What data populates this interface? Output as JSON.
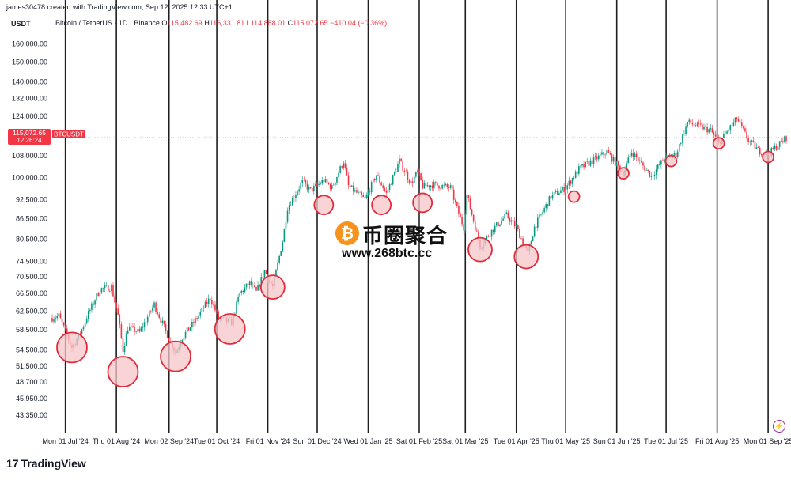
{
  "header": {
    "attribution": "james30478 created with TradingView.com, Sep 12, 2025 12:33 UTC+1",
    "unit": "USDT",
    "symbol_label": "Bitcoin / TetherUS · 1D · Binance",
    "open_label": "O",
    "open_value": "115,482.69",
    "high_label": "H",
    "high_value": "116,331.81",
    "low_label": "L",
    "low_value": "114,888.01",
    "close_label": "C",
    "close_value": "115,072.65",
    "change": "−410.04 (−0.36%)"
  },
  "price_badge": {
    "price": "115,072.65",
    "countdown": "12:26:24",
    "ticker": "BTCUSDT"
  },
  "watermark": {
    "coin_glyph": "₿",
    "name": "币圈聚合",
    "url": "www.268btc.cc"
  },
  "footer": {
    "brand": "TradingView",
    "logo_text": "17"
  },
  "colors": {
    "up": "#089981",
    "down": "#f23645",
    "circle_fill": "#f7c6c9",
    "circle_stroke": "#e02d3c",
    "vline": "#1e1e1e"
  },
  "icons": {
    "brand_logo": "tradingview-logo-icon",
    "coin": "bitcoin-icon",
    "bolt": "lightning-icon"
  },
  "chart_data": {
    "type": "candlestick",
    "y_axis": {
      "scale": "log",
      "ylim": [
        41000,
        168000
      ],
      "ticks": [
        43350,
        45950,
        48700,
        51500,
        54500,
        58500,
        62500,
        66500,
        70500,
        74500,
        80500,
        86500,
        92500,
        100000,
        108000,
        124000,
        132000,
        140000,
        150000,
        160000
      ],
      "tick_labels": [
        "43,350.00",
        "45,950.00",
        "48,700.00",
        "51,500.00",
        "54,500.00",
        "58,500.00",
        "62,500.00",
        "66,500.00",
        "70,500.00",
        "74,500.00",
        "80,500.00",
        "86,500.00",
        "92,500.00",
        "100,000.00",
        "108,000.00",
        "124,000.00",
        "132,000.00",
        "140,000.00",
        "150,000.00",
        "160,000.00"
      ]
    },
    "x_axis": {
      "start": "2024-06-23",
      "end": "2025-09-12",
      "month_starts": [
        "2024-07-01",
        "2024-08-01",
        "2024-09-02",
        "2024-10-01",
        "2024-11-01",
        "2024-12-01",
        "2025-01-01",
        "2025-02-01",
        "2025-03-01",
        "2025-04-01",
        "2025-05-01",
        "2025-06-01",
        "2025-07-01",
        "2025-08-01",
        "2025-09-01"
      ],
      "month_labels": [
        "Mon 01 Jul '24",
        "Thu 01 Aug '24",
        "Mon 02 Sep '24",
        "Tue 01 Oct '24",
        "Fri 01 Nov '24",
        "Sun 01 Dec '24",
        "Wed 01 Jan '25",
        "Sat 01 Feb '25",
        "Sat 01 Mar '25",
        "Tue 01 Apr '25",
        "Thu 01 May '25",
        "Sun 01 Jun '25",
        "Tue 01 Jul '25",
        "Fri 01 Aug '25",
        "Mon 01 Sep '25"
      ]
    },
    "last_price": 115072.65,
    "path_points": [
      [
        "2024-06-23",
        61000
      ],
      [
        "2024-06-27",
        61500
      ],
      [
        "2024-07-05",
        55000
      ],
      [
        "2024-07-10",
        57800
      ],
      [
        "2024-07-15",
        62000
      ],
      [
        "2024-07-22",
        67500
      ],
      [
        "2024-07-29",
        68000
      ],
      [
        "2024-08-02",
        61500
      ],
      [
        "2024-08-05",
        54500
      ],
      [
        "2024-08-08",
        59000
      ],
      [
        "2024-08-15",
        58000
      ],
      [
        "2024-08-24",
        64000
      ],
      [
        "2024-08-30",
        59000
      ],
      [
        "2024-09-06",
        54000
      ],
      [
        "2024-09-10",
        57000
      ],
      [
        "2024-09-17",
        60000
      ],
      [
        "2024-09-27",
        65500
      ],
      [
        "2024-10-02",
        61000
      ],
      [
        "2024-10-10",
        60000
      ],
      [
        "2024-10-15",
        66500
      ],
      [
        "2024-10-21",
        69000
      ],
      [
        "2024-10-25",
        66800
      ],
      [
        "2024-10-30",
        72000
      ],
      [
        "2024-11-04",
        68000
      ],
      [
        "2024-11-10",
        80000
      ],
      [
        "2024-11-13",
        90000
      ],
      [
        "2024-11-22",
        98500
      ],
      [
        "2024-11-27",
        95500
      ],
      [
        "2024-12-05",
        99000
      ],
      [
        "2024-12-10",
        96500
      ],
      [
        "2024-12-17",
        106000
      ],
      [
        "2024-12-20",
        97000
      ],
      [
        "2024-12-30",
        92500
      ],
      [
        "2025-01-06",
        101000
      ],
      [
        "2025-01-12",
        94500
      ],
      [
        "2025-01-20",
        106000
      ],
      [
        "2025-01-27",
        98000
      ],
      [
        "2025-01-31",
        102000
      ],
      [
        "2025-02-03",
        97000
      ],
      [
        "2025-02-10",
        97500
      ],
      [
        "2025-02-20",
        96500
      ],
      [
        "2025-02-25",
        88000
      ],
      [
        "2025-02-28",
        84000
      ],
      [
        "2025-03-02",
        94000
      ],
      [
        "2025-03-10",
        78500
      ],
      [
        "2025-03-18",
        83500
      ],
      [
        "2025-03-26",
        87500
      ],
      [
        "2025-04-01",
        84000
      ],
      [
        "2025-04-08",
        76500
      ],
      [
        "2025-04-12",
        84000
      ],
      [
        "2025-04-22",
        93500
      ],
      [
        "2025-05-01",
        96500
      ],
      [
        "2025-05-09",
        103000
      ],
      [
        "2025-05-21",
        107500
      ],
      [
        "2025-05-26",
        109500
      ],
      [
        "2025-06-05",
        101500
      ],
      [
        "2025-06-10",
        109500
      ],
      [
        "2025-06-22",
        100500
      ],
      [
        "2025-06-30",
        107000
      ],
      [
        "2025-07-07",
        108500
      ],
      [
        "2025-07-14",
        121500
      ],
      [
        "2025-07-28",
        118000
      ],
      [
        "2025-08-02",
        113000
      ],
      [
        "2025-08-13",
        123000
      ],
      [
        "2025-08-20",
        114000
      ],
      [
        "2025-08-26",
        110000
      ],
      [
        "2025-09-01",
        108500
      ],
      [
        "2025-09-12",
        115072
      ]
    ],
    "highlight_circles": [
      {
        "date": "2024-07-05",
        "price": 55000,
        "size": "large"
      },
      {
        "date": "2024-08-05",
        "price": 50500,
        "size": "large"
      },
      {
        "date": "2024-09-06",
        "price": 53300,
        "size": "large"
      },
      {
        "date": "2024-10-09",
        "price": 58700,
        "size": "large"
      },
      {
        "date": "2024-11-04",
        "price": 68000,
        "size": "medium"
      },
      {
        "date": "2024-12-05",
        "price": 90800,
        "size": "small"
      },
      {
        "date": "2025-01-09",
        "price": 90800,
        "size": "small"
      },
      {
        "date": "2025-02-03",
        "price": 91500,
        "size": "small"
      },
      {
        "date": "2025-03-10",
        "price": 77600,
        "size": "medium"
      },
      {
        "date": "2025-04-07",
        "price": 75700,
        "size": "medium"
      },
      {
        "date": "2025-05-06",
        "price": 93500,
        "size": "tiny"
      },
      {
        "date": "2025-06-05",
        "price": 101500,
        "size": "tiny"
      },
      {
        "date": "2025-07-04",
        "price": 106000,
        "size": "tiny"
      },
      {
        "date": "2025-08-02",
        "price": 112800,
        "size": "tiny"
      },
      {
        "date": "2025-09-01",
        "price": 107500,
        "size": "tiny"
      }
    ]
  }
}
